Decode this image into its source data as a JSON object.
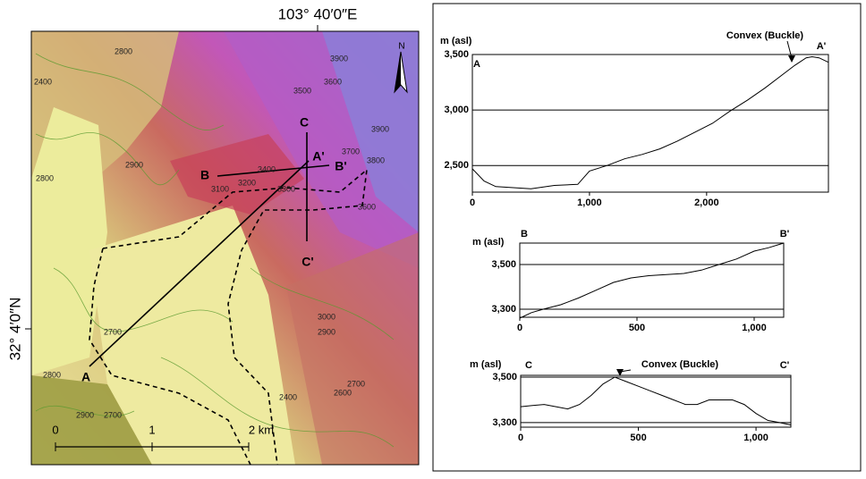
{
  "map": {
    "lon_label": "103°  40′0″E",
    "lat_label": "32°  4′0″N",
    "north": "N",
    "profile_labels": [
      "A",
      "A'",
      "B",
      "B'",
      "C",
      "C'"
    ],
    "scale_labels": [
      "0",
      "1",
      "2 km"
    ],
    "contour_labels": [
      "2800",
      "2400",
      "3500",
      "3600",
      "3900",
      "2900",
      "2800",
      "3400",
      "3200",
      "3100",
      "3300",
      "3700",
      "3800",
      "3900",
      "3600",
      "3000",
      "2900",
      "2700",
      "2600",
      "2400",
      "2700",
      "2800",
      "2900",
      "2700"
    ]
  },
  "chart_data": [
    {
      "type": "line",
      "y_label": "m (asl)",
      "start_label": "A",
      "end_label": "A'",
      "annotation": "Convex (Buckle)",
      "color": "#000000",
      "grid": true,
      "x": [
        0,
        100,
        200,
        350,
        500,
        700,
        900,
        1000,
        1150,
        1300,
        1450,
        1600,
        1750,
        1900,
        2050,
        2200,
        2350,
        2500,
        2650,
        2750,
        2850,
        2900,
        2960,
        3040
      ],
      "values": [
        2470,
        2360,
        2310,
        2300,
        2290,
        2320,
        2330,
        2450,
        2500,
        2560,
        2600,
        2650,
        2720,
        2800,
        2880,
        2990,
        3090,
        3200,
        3320,
        3400,
        3470,
        3480,
        3470,
        3430
      ],
      "xlim": [
        0,
        3040
      ],
      "ylim": [
        2260,
        3500
      ],
      "xticks": [
        0,
        {
          "value": 1000,
          "label": "1,000"
        },
        {
          "value": 2000,
          "label": "2,000"
        }
      ],
      "yticks": [
        {
          "value": 2500,
          "label": "2,500"
        },
        {
          "value": 3000,
          "label": "3,000"
        },
        {
          "value": 3500,
          "label": "3,500"
        }
      ]
    },
    {
      "type": "line",
      "y_label": "m (asl)",
      "start_label": "B",
      "end_label": "B'",
      "color": "#000000",
      "grid": true,
      "x": [
        0,
        50,
        100,
        175,
        250,
        325,
        400,
        475,
        550,
        625,
        700,
        775,
        850,
        925,
        1000,
        1060,
        1126
      ],
      "values": [
        3260,
        3285,
        3300,
        3320,
        3350,
        3385,
        3420,
        3440,
        3450,
        3455,
        3460,
        3475,
        3500,
        3525,
        3560,
        3575,
        3596
      ],
      "xlim": [
        0,
        1126
      ],
      "ylim": [
        3264,
        3596
      ],
      "xticks": [
        0,
        500,
        {
          "value": 1000,
          "label": "1,000"
        }
      ],
      "yticks": [
        {
          "value": 3300,
          "label": "3,300"
        },
        {
          "value": 3500,
          "label": "3,500"
        }
      ]
    },
    {
      "type": "line",
      "y_label": "m (asl)",
      "start_label": "C",
      "end_label": "C'",
      "annotation": "Convex (Buckle)",
      "color": "#000000",
      "grid": true,
      "x": [
        0,
        50,
        100,
        150,
        200,
        250,
        300,
        350,
        400,
        450,
        500,
        550,
        600,
        650,
        700,
        750,
        800,
        850,
        900,
        950,
        1000,
        1050,
        1100,
        1148
      ],
      "values": [
        3370,
        3375,
        3380,
        3370,
        3360,
        3380,
        3420,
        3470,
        3500,
        3480,
        3460,
        3440,
        3420,
        3400,
        3380,
        3380,
        3400,
        3400,
        3400,
        3380,
        3340,
        3310,
        3300,
        3290
      ],
      "xlim": [
        0,
        1148
      ],
      "ylim": [
        3280,
        3508
      ],
      "xticks": [
        0,
        500,
        {
          "value": 1000,
          "label": "1,000"
        }
      ],
      "yticks": [
        {
          "value": 3300,
          "label": "3,300"
        },
        {
          "value": 3500,
          "label": "3,500"
        }
      ]
    }
  ]
}
